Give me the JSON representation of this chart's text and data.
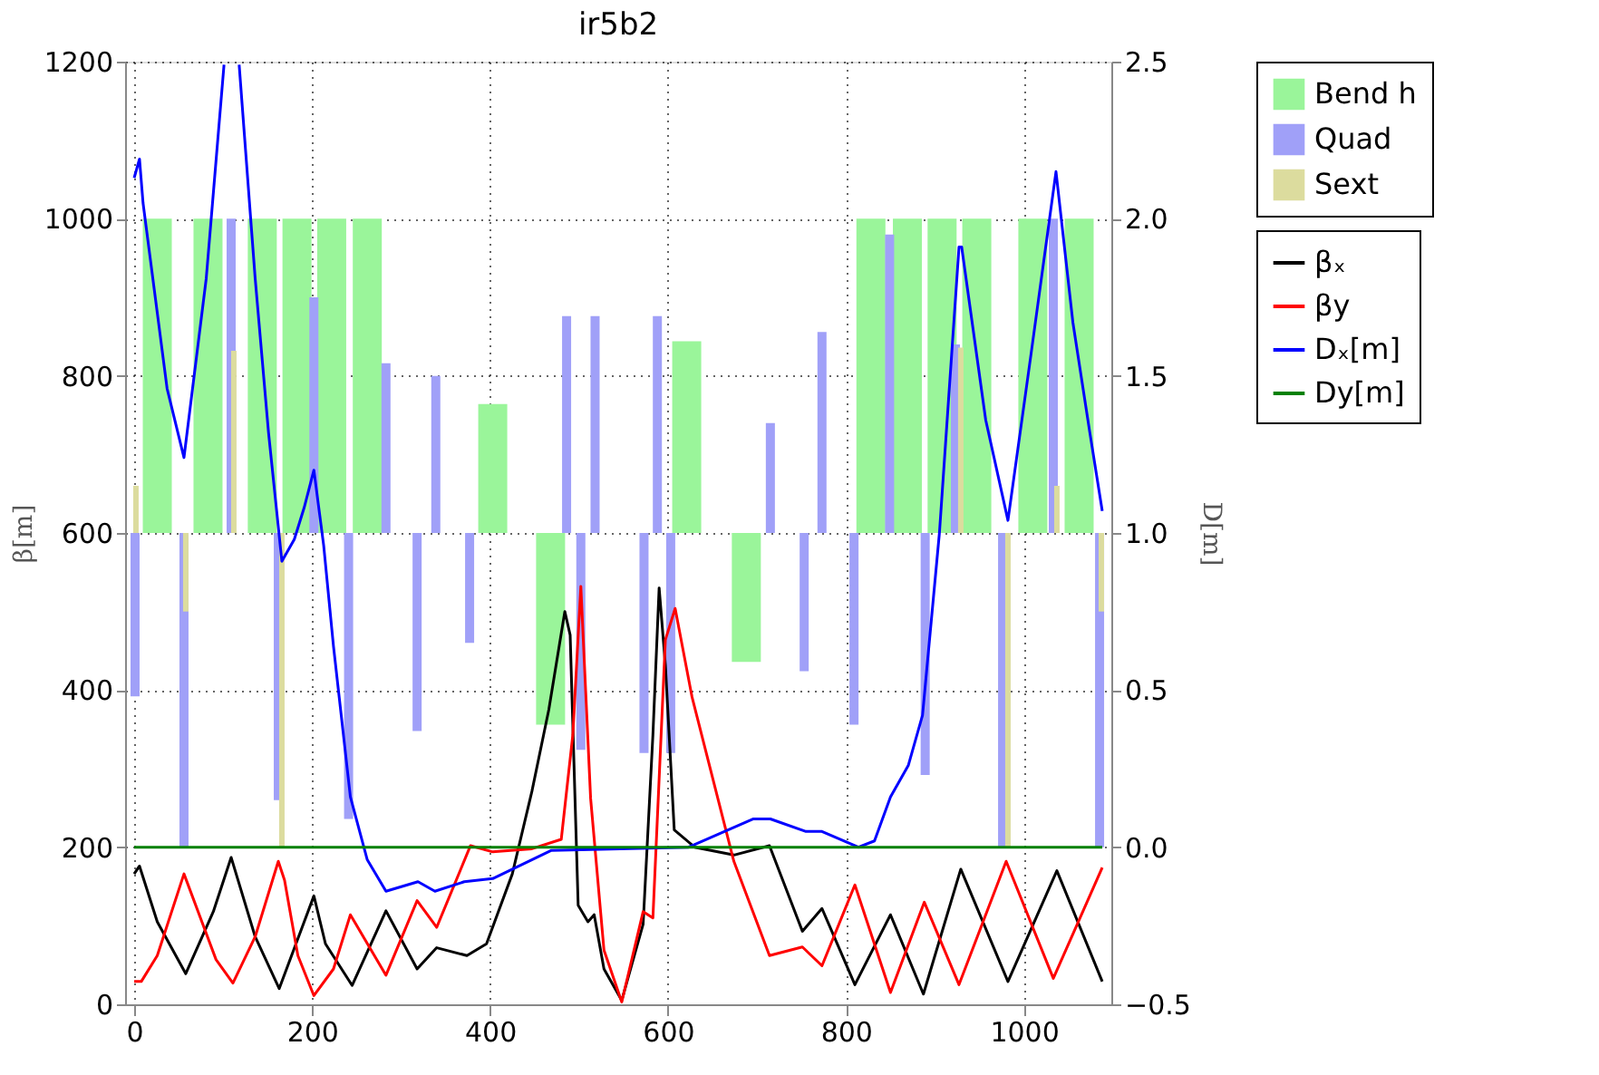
{
  "chart_data": {
    "type": "line",
    "title": "ir5b2",
    "ylabel": "β[m]",
    "y2label": "D[m]",
    "xlim": [
      0,
      1088
    ],
    "xticks": [
      0,
      200,
      400,
      600,
      800,
      1000
    ],
    "ylim": [
      0,
      1200
    ],
    "yticks": [
      0,
      200,
      400,
      600,
      800,
      1000,
      1200
    ],
    "y2lim": [
      -0.5,
      2.5
    ],
    "y2ticks": [
      {
        "value": -0.5,
        "label": "−0.5"
      },
      {
        "value": 0,
        "label": "0.0"
      },
      0.5,
      {
        "value": 1,
        "label": "1.0"
      },
      1.5,
      {
        "value": 2,
        "label": "2.0"
      },
      2.5
    ],
    "grid": true,
    "legend": "top right",
    "line_style": "solid",
    "marker": "none",
    "series": [
      {
        "name": "Bend h",
        "type": "bar",
        "axis": "y2",
        "color": "#9af59a",
        "x": [
          26,
          83,
          144,
          183,
          222,
          262,
          403,
          468,
          621,
          688,
          828,
          869,
          908,
          947,
          1010,
          1062
        ],
        "base": [
          1,
          1,
          1,
          1,
          1,
          1,
          1,
          1,
          1,
          1,
          1,
          1,
          1,
          1,
          1,
          1
        ],
        "values": [
          1,
          1,
          1,
          1,
          1,
          1,
          0.41,
          -0.61,
          0.61,
          -0.41,
          1,
          1,
          1,
          1,
          1,
          1
        ]
      },
      {
        "name": "Quad",
        "type": "bar",
        "axis": "y2",
        "color": "#a0a0f8",
        "x": [
          1,
          56,
          109,
          162,
          202,
          241,
          283,
          318,
          339,
          377,
          486,
          502,
          518,
          573,
          588,
          603,
          715,
          753,
          773,
          809,
          849,
          889,
          923,
          976,
          1033,
          1085
        ],
        "base": [
          1,
          1,
          1,
          1,
          1,
          1,
          1,
          1,
          1,
          1,
          1,
          1,
          1,
          1,
          1,
          1,
          1,
          1,
          1,
          1,
          1,
          1,
          1,
          1,
          1,
          1
        ],
        "values": [
          -0.52,
          -1.0,
          1.0,
          -0.85,
          0.75,
          -0.91,
          0.54,
          -0.63,
          0.5,
          -0.35,
          0.69,
          -0.69,
          0.69,
          -0.7,
          0.69,
          -0.7,
          0.35,
          -0.44,
          0.64,
          -0.61,
          0.95,
          -0.77,
          0.6,
          -1.0,
          1.0,
          -1.0
        ]
      },
      {
        "name": "Sext",
        "type": "bar",
        "axis": "y2",
        "color": "#dcdc9e",
        "x": [
          2,
          58,
          112,
          166,
          929,
          982,
          1037,
          1087
        ],
        "base": [
          1,
          1,
          1,
          1,
          1,
          1,
          1,
          1
        ],
        "values": [
          0.15,
          -0.25,
          0.58,
          -1.0,
          0.59,
          -1.0,
          0.15,
          -0.25
        ]
      },
      {
        "name": "βₓ",
        "color": "#000000",
        "x": [
          0,
          6,
          26,
          58,
          89,
          109,
          136,
          163,
          202,
          215,
          245,
          283,
          318,
          340,
          374,
          396,
          425,
          447,
          466,
          484,
          490,
          499,
          510,
          517,
          528,
          548,
          572,
          583,
          590,
          597,
          607,
          630,
          674,
          714,
          751,
          773,
          810,
          850,
          887,
          929,
          982,
          1037,
          1088
        ],
        "values": [
          166,
          176,
          105,
          39,
          118,
          187,
          86,
          20,
          138,
          77,
          24,
          119,
          45,
          72,
          62,
          77,
          166,
          271,
          375,
          500,
          470,
          126,
          105,
          114,
          45,
          5,
          102,
          343,
          530,
          432,
          222,
          200,
          190,
          202,
          93,
          122,
          25,
          114,
          13,
          172,
          29,
          170,
          29
        ]
      },
      {
        "name": "βy",
        "color": "#ff0000",
        "x": [
          0,
          8,
          26,
          56,
          92,
          111,
          136,
          162,
          169,
          184,
          202,
          224,
          243,
          283,
          318,
          340,
          378,
          403,
          447,
          480,
          493,
          502,
          513,
          528,
          548,
          572,
          583,
          597,
          608,
          627,
          674,
          714,
          751,
          773,
          810,
          850,
          888,
          927,
          980,
          1033,
          1088
        ],
        "values": [
          29,
          29,
          62,
          166,
          57,
          27,
          86,
          182,
          158,
          62,
          11,
          45,
          114,
          37,
          132,
          98,
          202,
          194,
          198,
          210,
          343,
          532,
          262,
          69,
          3,
          118,
          110,
          464,
          504,
          391,
          182,
          62,
          73,
          49,
          152,
          15,
          130,
          25,
          182,
          33,
          174
        ]
      },
      {
        "name": "Dₓ[m]",
        "axis": "y2",
        "color": "#0000ff",
        "x": [
          0,
          6,
          10,
          37,
          56,
          81,
          101,
          110,
          118,
          136,
          151,
          166,
          180,
          191,
          202,
          213,
          224,
          243,
          262,
          283,
          319,
          338,
          371,
          403,
          469,
          623,
          696,
          715,
          755,
          773,
          814,
          832,
          850,
          870,
          886,
          905,
          927,
          930,
          957,
          982,
          1008,
          1036,
          1055,
          1074,
          1088
        ],
        "values": [
          2.13,
          2.19,
          2.05,
          1.46,
          1.24,
          1.81,
          2.49,
          null,
          2.49,
          1.81,
          1.32,
          0.91,
          0.98,
          1.08,
          1.2,
          0.96,
          0.64,
          0.16,
          -0.04,
          -0.14,
          -0.11,
          -0.14,
          -0.11,
          -0.1,
          -0.01,
          0,
          0.09,
          0.09,
          0.05,
          0.05,
          0,
          0.02,
          0.16,
          0.26,
          0.42,
          1.0,
          1.91,
          1.91,
          1.36,
          1.04,
          1.57,
          2.15,
          1.67,
          1.32,
          1.07
        ]
      },
      {
        "name": "Dy[m]",
        "axis": "y2",
        "color": "#008000",
        "x": [
          0,
          1088
        ],
        "values": [
          0,
          0
        ]
      }
    ]
  }
}
